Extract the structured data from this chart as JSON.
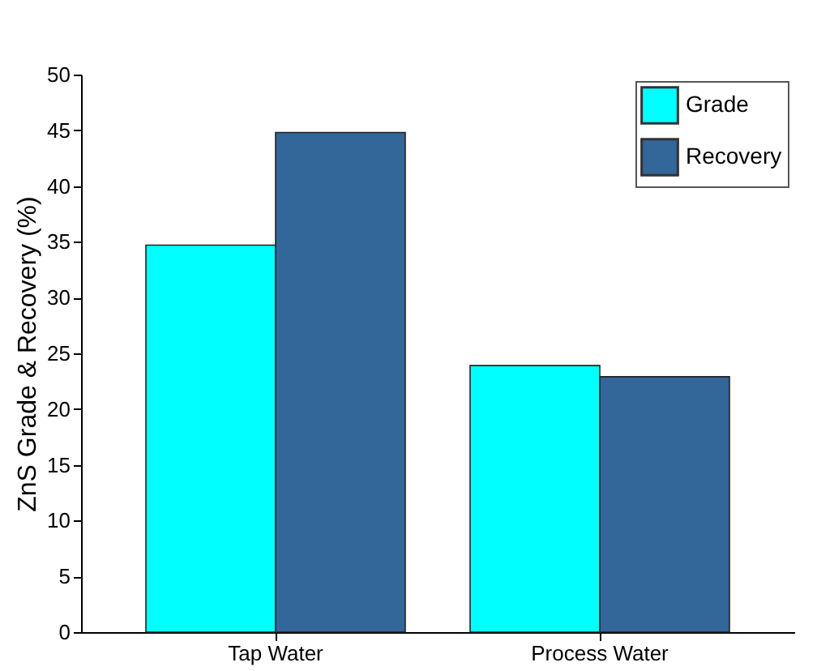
{
  "chart_data": {
    "type": "bar",
    "ylabel": "ZnS Grade & Recovery (%)",
    "categories": [
      "Tap Water",
      "Process Water"
    ],
    "series": [
      {
        "name": "Grade",
        "color": "#00ffff",
        "values": [
          34.7,
          23.9
        ]
      },
      {
        "name": "Recovery",
        "color": "#336699",
        "values": [
          44.8,
          22.9
        ]
      }
    ],
    "ylim": [
      0,
      50
    ],
    "yticks": [
      0,
      5,
      10,
      15,
      20,
      25,
      30,
      35,
      40,
      45,
      50
    ],
    "grid": false,
    "legend": "top right"
  }
}
